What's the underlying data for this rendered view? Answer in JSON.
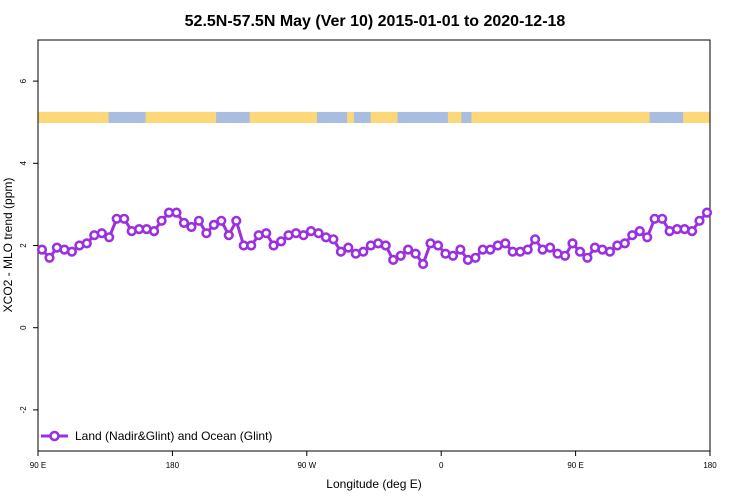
{
  "chart_data": {
    "type": "line",
    "title": "52.5N-57.5N May (Ver 10)   2015-01-01 to 2020-12-18",
    "xlabel": "Longitude (deg E)",
    "ylabel": "XCO2 - MLO trend (ppm)",
    "xticks": [
      "90 E",
      "180",
      "90 W",
      "0",
      "90 E",
      "180"
    ],
    "yticks": [
      "-2",
      "0",
      "2",
      "4",
      "6"
    ],
    "ytick_values": [
      -2,
      0,
      2,
      4,
      6
    ],
    "ylim": [
      -3,
      7
    ],
    "grid": false,
    "legend_position": "bottom-left",
    "series": [
      {
        "name": "Land (Nadir&Glint) and Ocean (Glint)",
        "color": "#9b30e0",
        "values": [
          1.9,
          1.7,
          1.95,
          1.9,
          1.85,
          2.0,
          2.05,
          2.25,
          2.3,
          2.2,
          2.65,
          2.65,
          2.35,
          2.4,
          2.4,
          2.35,
          2.6,
          2.8,
          2.8,
          2.55,
          2.45,
          2.6,
          2.3,
          2.5,
          2.6,
          2.25,
          2.6,
          2.0,
          2.0,
          2.25,
          2.3,
          2.0,
          2.1,
          2.25,
          2.3,
          2.25,
          2.35,
          2.3,
          2.2,
          2.15,
          1.85,
          1.95,
          1.8,
          1.85,
          2.0,
          2.05,
          2.0,
          1.65,
          1.75,
          1.9,
          1.8,
          1.55,
          2.05,
          2.0,
          1.8,
          1.75,
          1.9,
          1.65,
          1.7,
          1.9,
          1.9,
          2.0,
          2.05,
          1.85,
          1.85,
          1.9,
          2.15,
          1.9,
          1.95,
          1.8,
          1.75,
          2.05,
          1.85,
          1.7,
          1.95,
          1.9,
          1.85,
          2.0,
          2.05,
          2.25,
          2.35,
          2.2,
          2.65,
          2.65,
          2.35,
          2.4,
          2.4,
          2.35,
          2.6,
          2.8
        ]
      }
    ],
    "land_ocean_band": {
      "y_range": [
        4.98,
        5.25
      ],
      "ocean_color": "#a9bde0",
      "land_color": "#fdd878",
      "land_segments": [
        [
          0.0,
          0.105
        ],
        [
          0.16,
          0.265
        ],
        [
          0.315,
          0.415
        ],
        [
          0.46,
          0.47
        ],
        [
          0.495,
          0.535
        ],
        [
          0.61,
          0.63
        ],
        [
          0.645,
          0.91
        ],
        [
          0.96,
          1.0
        ]
      ]
    }
  }
}
